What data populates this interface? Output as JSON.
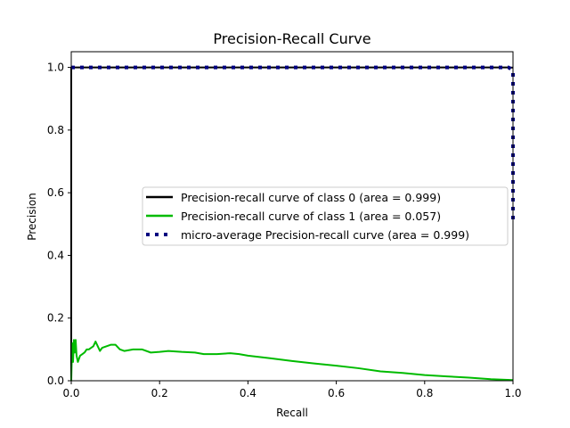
{
  "chart_data": {
    "type": "line",
    "title": "Precision-Recall Curve",
    "xlabel": "Recall",
    "ylabel": "Precision",
    "xlim": [
      0,
      1
    ],
    "ylim": [
      0,
      1.05
    ],
    "xticks": [
      0,
      0.2,
      0.4,
      0.6,
      0.8,
      1.0
    ],
    "xtick_labels": [
      "0.0",
      "0.2",
      "0.4",
      "0.6",
      "0.8",
      "1.0"
    ],
    "yticks": [
      0,
      0.2,
      0.4,
      0.6,
      0.8,
      1.0
    ],
    "ytick_labels": [
      "0.0",
      "0.2",
      "0.4",
      "0.6",
      "0.8",
      "1.0"
    ],
    "grid": false,
    "legend_position": "center-right",
    "series": [
      {
        "name": "Precision-recall curve of class 0 (area = 0.999)",
        "color": "#000000",
        "style": "solid",
        "x": [
          0.0,
          0.0,
          0.01,
          0.5,
          0.99,
          1.0
        ],
        "y": [
          0.0,
          1.0,
          1.0,
          1.0,
          1.0,
          0.999
        ]
      },
      {
        "name": "Precision-recall curve of class 1 (area = 0.057)",
        "color": "#00bb00",
        "style": "solid",
        "x": [
          0.0,
          0.002,
          0.004,
          0.006,
          0.008,
          0.01,
          0.012,
          0.015,
          0.02,
          0.025,
          0.03,
          0.035,
          0.04,
          0.05,
          0.055,
          0.06,
          0.065,
          0.07,
          0.08,
          0.09,
          0.1,
          0.11,
          0.12,
          0.14,
          0.16,
          0.18,
          0.2,
          0.22,
          0.25,
          0.28,
          0.3,
          0.33,
          0.36,
          0.38,
          0.4,
          0.45,
          0.5,
          0.55,
          0.6,
          0.65,
          0.7,
          0.75,
          0.8,
          0.85,
          0.9,
          0.95,
          1.0
        ],
        "y": [
          0.0,
          0.12,
          0.06,
          0.13,
          0.09,
          0.13,
          0.08,
          0.06,
          0.08,
          0.085,
          0.09,
          0.1,
          0.1,
          0.11,
          0.125,
          0.11,
          0.095,
          0.105,
          0.11,
          0.115,
          0.115,
          0.1,
          0.095,
          0.1,
          0.1,
          0.09,
          0.092,
          0.095,
          0.092,
          0.09,
          0.085,
          0.085,
          0.088,
          0.085,
          0.08,
          0.072,
          0.063,
          0.055,
          0.048,
          0.04,
          0.03,
          0.025,
          0.018,
          0.014,
          0.01,
          0.005,
          0.002
        ]
      },
      {
        "name": "micro-average Precision-recall curve (area = 0.999)",
        "color": "#000080",
        "style": "dotted",
        "x": [
          0.0,
          0.5,
          0.99,
          1.0,
          1.0
        ],
        "y": [
          1.0,
          1.0,
          1.0,
          0.99,
          0.5
        ]
      }
    ]
  }
}
